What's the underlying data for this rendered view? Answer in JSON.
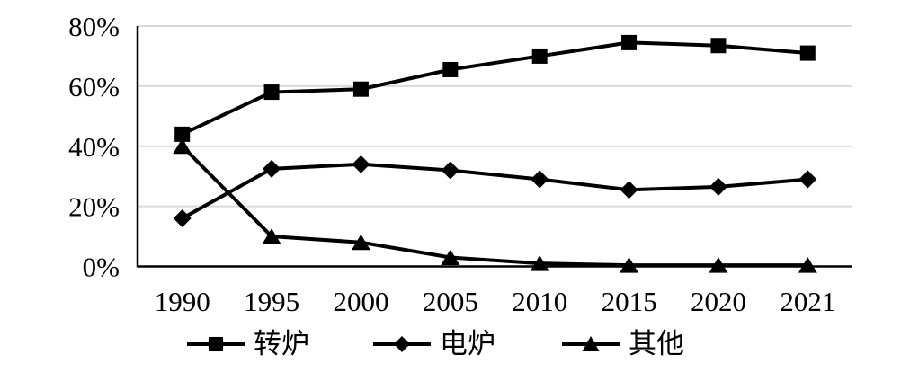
{
  "chart_data": {
    "type": "line",
    "title": "",
    "xlabel": "",
    "ylabel": "",
    "categories": [
      "1990",
      "1995",
      "2000",
      "2005",
      "2010",
      "2015",
      "2020",
      "2021"
    ],
    "series": [
      {
        "name": "转炉",
        "marker": "square",
        "values": [
          44,
          58,
          59,
          65.5,
          70,
          74.5,
          73.5,
          71
        ]
      },
      {
        "name": "电炉",
        "marker": "diamond",
        "values": [
          16,
          32.5,
          34,
          32,
          29,
          25.5,
          26.5,
          29
        ]
      },
      {
        "name": "其他",
        "marker": "triangle",
        "values": [
          40,
          10,
          8,
          3,
          1,
          0.4,
          0.4,
          0.4
        ]
      }
    ],
    "ylim": [
      0,
      80
    ],
    "ytick_values": [
      0,
      20,
      40,
      60,
      80
    ],
    "yticks": [
      "0%",
      "20%",
      "40%",
      "60%",
      "80%"
    ],
    "grid": true,
    "legend_position": "bottom",
    "colors": {
      "series_color": "#000000",
      "gridline_color": "#d9d9d9",
      "axis_color": "#000000",
      "text_color": "#000000",
      "background": "#ffffff"
    }
  }
}
